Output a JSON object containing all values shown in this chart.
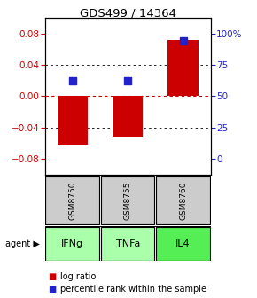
{
  "title": "GDS499 / 14364",
  "samples": [
    "GSM8750",
    "GSM8755",
    "GSM8760"
  ],
  "agents": [
    "IFNg",
    "TNFa",
    "IL4"
  ],
  "log_ratios": [
    -0.062,
    -0.052,
    0.072
  ],
  "percentile_ranks": [
    62,
    62,
    94
  ],
  "bar_color": "#cc0000",
  "dot_color": "#2222cc",
  "ylim": [
    -0.1,
    0.1
  ],
  "yticks_left": [
    -0.08,
    -0.04,
    0.0,
    0.04,
    0.08
  ],
  "yticks_right": [
    0,
    25,
    50,
    75,
    100
  ],
  "agent_colors": [
    "#aaffaa",
    "#aaffaa",
    "#55ee55"
  ],
  "sample_bg_color": "#cccccc",
  "bar_width": 0.55,
  "dot_size": 40
}
